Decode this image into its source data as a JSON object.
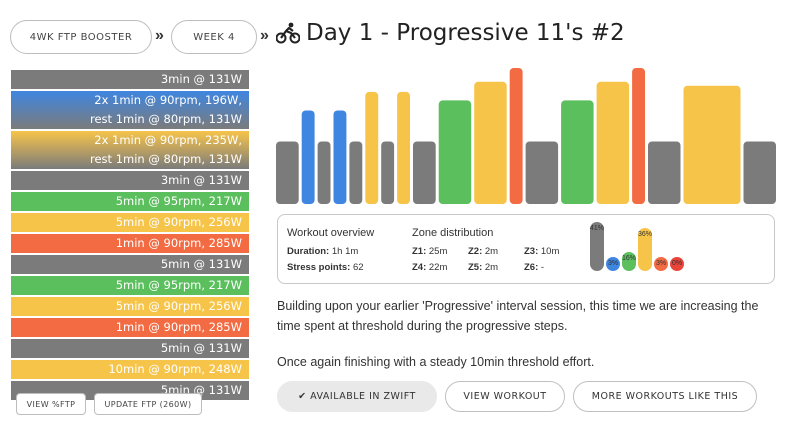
{
  "breadcrumbs": {
    "plan": "4WK FTP BOOSTER",
    "separator_1": "»",
    "week": "WEEK 4",
    "separator_2": "»"
  },
  "header": {
    "title": "Day 1 - Progressive 11's #2",
    "icon": "cyclist-icon"
  },
  "intervals": [
    {
      "lines": [
        "3min @ 131W"
      ],
      "color": "gray"
    },
    {
      "lines": [
        "2x 1min @ 90rpm, 196W,",
        "rest 1min @ 80rpm, 131W"
      ],
      "color": "blue"
    },
    {
      "lines": [
        "2x 1min @ 90rpm, 235W,",
        "rest 1min @ 80rpm, 131W"
      ],
      "color": "yellow-grad"
    },
    {
      "lines": [
        "3min @ 131W"
      ],
      "color": "gray"
    },
    {
      "lines": [
        "5min @ 95rpm, 217W"
      ],
      "color": "green"
    },
    {
      "lines": [
        "5min @ 90rpm, 256W"
      ],
      "color": "yellow"
    },
    {
      "lines": [
        "1min @ 90rpm, 285W"
      ],
      "color": "red"
    },
    {
      "lines": [
        "5min @ 131W"
      ],
      "color": "gray"
    },
    {
      "lines": [
        "5min @ 95rpm, 217W"
      ],
      "color": "green"
    },
    {
      "lines": [
        "5min @ 90rpm, 256W"
      ],
      "color": "yellow"
    },
    {
      "lines": [
        "1min @ 90rpm, 285W"
      ],
      "color": "red"
    },
    {
      "lines": [
        "5min @ 131W"
      ],
      "color": "gray"
    },
    {
      "lines": [
        "10min @ 90rpm, 248W"
      ],
      "color": "yellow"
    },
    {
      "lines": [
        "5min @ 131W"
      ],
      "color": "gray"
    }
  ],
  "left_buttons": {
    "view_ftp": "VIEW %FTP",
    "update_ftp": "UPDATE FTP (260W)"
  },
  "workout_profile": [
    {
      "watts": 131,
      "mins": 3,
      "color": "#7b7b7b"
    },
    {
      "watts": 196,
      "mins": 1,
      "color": "#3f86e0"
    },
    {
      "watts": 131,
      "mins": 1,
      "color": "#7b7b7b"
    },
    {
      "watts": 196,
      "mins": 1,
      "color": "#3f86e0"
    },
    {
      "watts": 131,
      "mins": 1,
      "color": "#7b7b7b"
    },
    {
      "watts": 235,
      "mins": 1,
      "color": "#f7c44a"
    },
    {
      "watts": 131,
      "mins": 1,
      "color": "#7b7b7b"
    },
    {
      "watts": 235,
      "mins": 1,
      "color": "#f7c44a"
    },
    {
      "watts": 131,
      "mins": 3,
      "color": "#7b7b7b"
    },
    {
      "watts": 217,
      "mins": 5,
      "color": "#5cbf5e"
    },
    {
      "watts": 256,
      "mins": 5,
      "color": "#f7c44a"
    },
    {
      "watts": 285,
      "mins": 1,
      "color": "#f26b43"
    },
    {
      "watts": 131,
      "mins": 5,
      "color": "#7b7b7b"
    },
    {
      "watts": 217,
      "mins": 5,
      "color": "#5cbf5e"
    },
    {
      "watts": 256,
      "mins": 5,
      "color": "#f7c44a"
    },
    {
      "watts": 285,
      "mins": 1,
      "color": "#f26b43"
    },
    {
      "watts": 131,
      "mins": 5,
      "color": "#7b7b7b"
    },
    {
      "watts": 248,
      "mins": 10,
      "color": "#f7c44a"
    },
    {
      "watts": 131,
      "mins": 5,
      "color": "#7b7b7b"
    }
  ],
  "overview": {
    "heading": "Workout overview",
    "duration_label": "Duration:",
    "duration_value": "1h 1m",
    "stress_label": "Stress points:",
    "stress_value": "62",
    "zone_heading": "Zone distribution",
    "zones": {
      "z1_label": "Z1:",
      "z1_value": "25m",
      "z2_label": "Z2:",
      "z2_value": "2m",
      "z3_label": "Z3:",
      "z3_value": "10m",
      "z4_label": "Z4:",
      "z4_value": "22m",
      "z5_label": "Z5:",
      "z5_value": "2m",
      "z6_label": "Z6:",
      "z6_value": "-"
    },
    "zone_bars": [
      {
        "label": "41%",
        "percent": 41,
        "color": "#7b7b7b"
      },
      {
        "label": "3%",
        "percent": 3,
        "color": "#3f86e0"
      },
      {
        "label": "16%",
        "percent": 16,
        "color": "#5cbf5e"
      },
      {
        "label": "36%",
        "percent": 36,
        "color": "#f7c44a"
      },
      {
        "label": "3%",
        "percent": 3,
        "color": "#f26b43"
      },
      {
        "label": "0%",
        "percent": 0,
        "color": "#e8443a"
      }
    ]
  },
  "description": {
    "p1": "Building upon your earlier 'Progressive' interval session, this time we are increasing the time spent at threshold during the progressive steps.",
    "p2": "Once again finishing with a steady 10min threshold effort."
  },
  "actions": {
    "available": "✔ AVAILABLE IN ZWIFT",
    "view": "VIEW WORKOUT",
    "more": "MORE WORKOUTS LIKE THIS"
  }
}
